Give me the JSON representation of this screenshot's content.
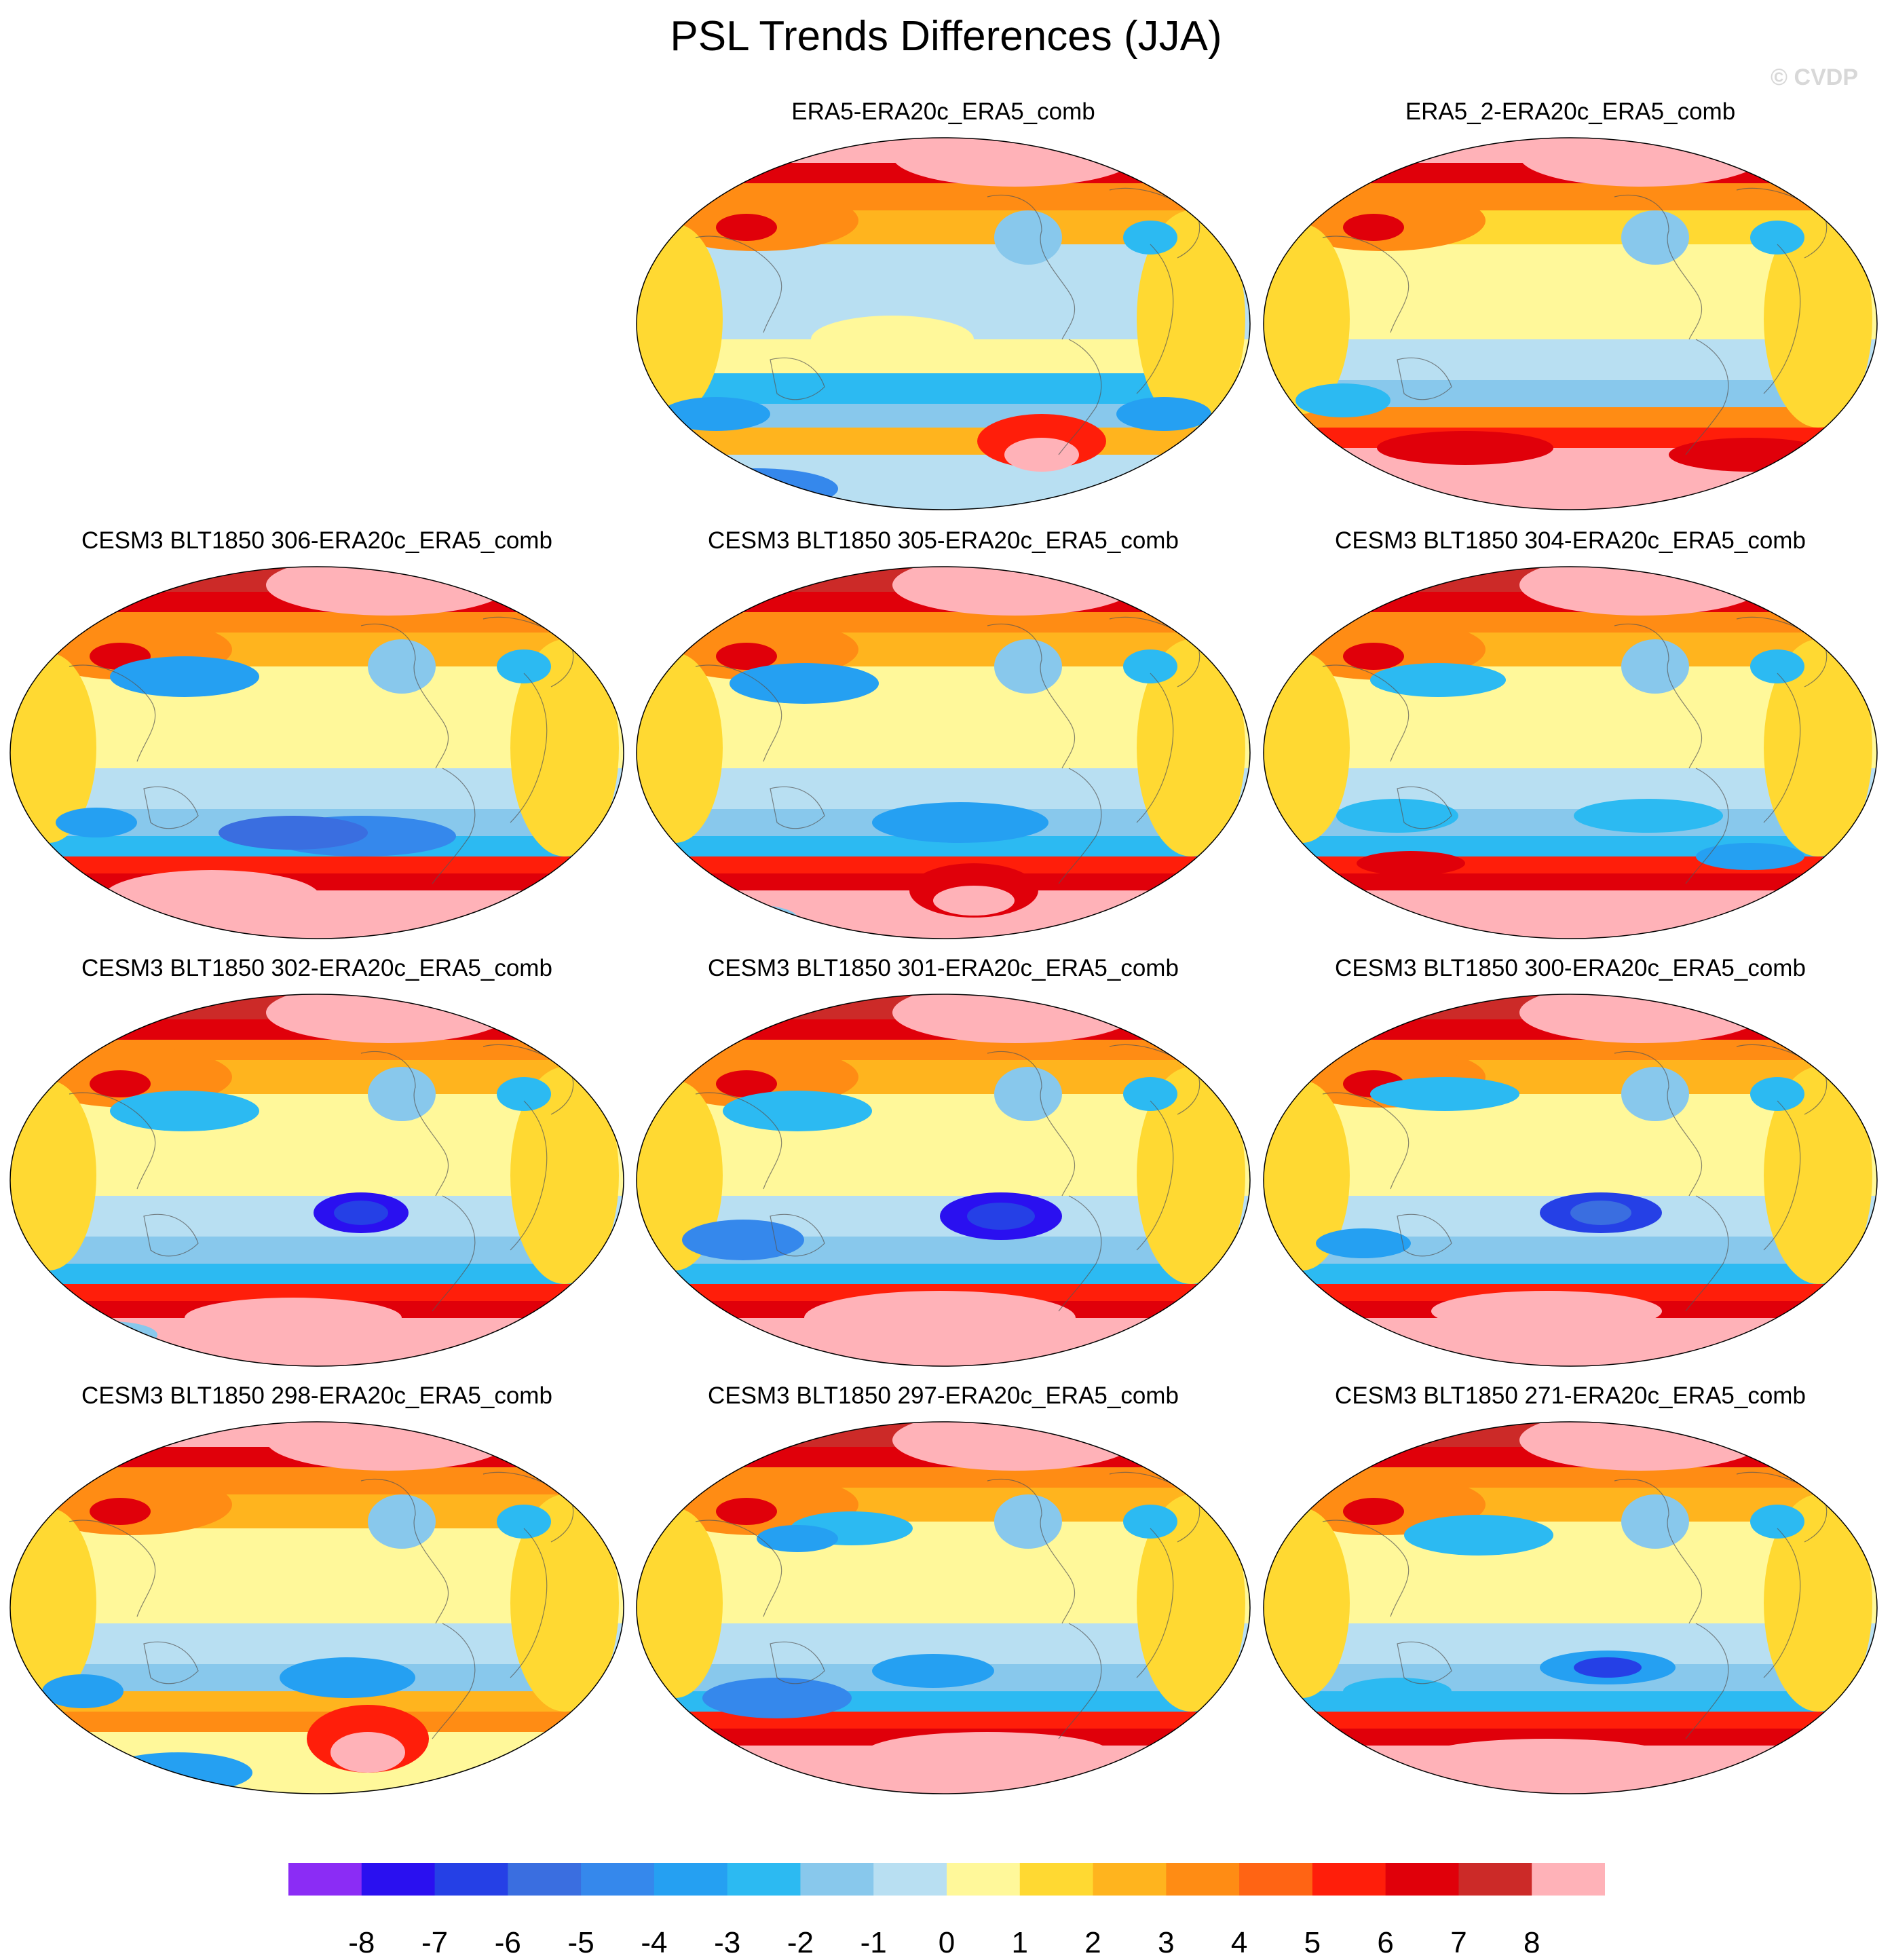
{
  "figure": {
    "title": "PSL Trends Differences (JJA)",
    "credit": "© CVDP"
  },
  "panels": [
    {
      "label": "ERA5-ERA20c_ERA5_comb",
      "variant": 0
    },
    {
      "label": "ERA5_2-ERA20c_ERA5_comb",
      "variant": 1
    },
    {
      "label": "CESM3 BLT1850 306-ERA20c_ERA5_comb",
      "variant": 2
    },
    {
      "label": "CESM3 BLT1850 305-ERA20c_ERA5_comb",
      "variant": 3
    },
    {
      "label": "CESM3 BLT1850 304-ERA20c_ERA5_comb",
      "variant": 4
    },
    {
      "label": "CESM3 BLT1850 302-ERA20c_ERA5_comb",
      "variant": 5
    },
    {
      "label": "CESM3 BLT1850 301-ERA20c_ERA5_comb",
      "variant": 6
    },
    {
      "label": "CESM3 BLT1850 300-ERA20c_ERA5_comb",
      "variant": 7
    },
    {
      "label": "CESM3 BLT1850 298-ERA20c_ERA5_comb",
      "variant": 8
    },
    {
      "label": "CESM3 BLT1850 297-ERA20c_ERA5_comb",
      "variant": 9
    },
    {
      "label": "CESM3 BLT1850 271-ERA20c_ERA5_comb",
      "variant": 10
    }
  ],
  "colorbar": {
    "colors": [
      "#8b2cf5",
      "#2a10f0",
      "#2540e6",
      "#3a6ee0",
      "#3588ec",
      "#25a0f2",
      "#2cbaf2",
      "#88c8ec",
      "#b8dff2",
      "#fff89a",
      "#ffd932",
      "#ffb41e",
      "#ff8c14",
      "#ff6414",
      "#ff1e0a",
      "#e0000a",
      "#cc2a28",
      "#ffb2b8"
    ],
    "tick_labels": [
      "-8",
      "-7",
      "-6",
      "-5",
      "-4",
      "-3",
      "-2",
      "-1",
      "0",
      "1",
      "2",
      "3",
      "4",
      "5",
      "6",
      "7",
      "8"
    ]
  }
}
